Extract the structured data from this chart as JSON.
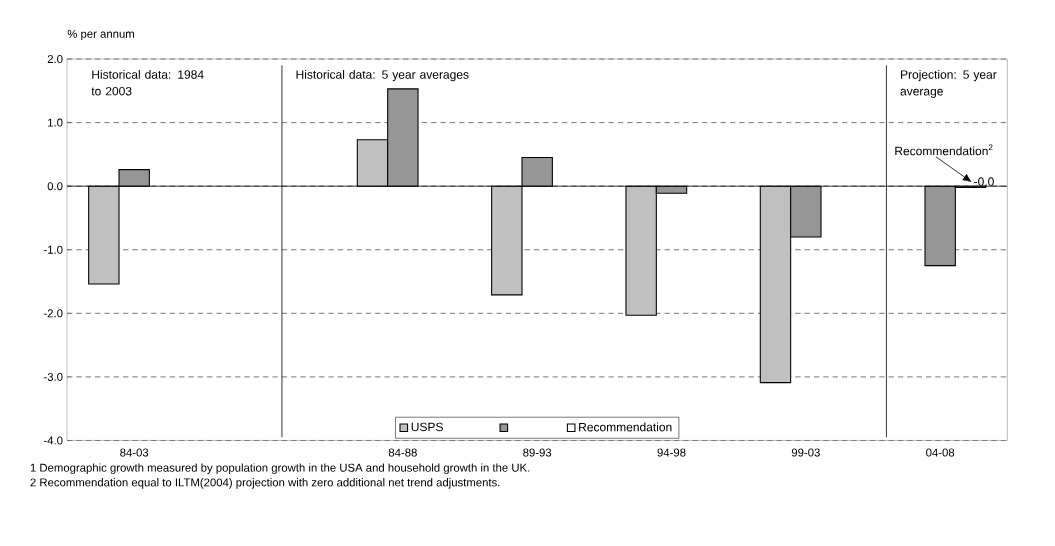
{
  "chart_data": {
    "type": "bar",
    "ylabel": "% per annum",
    "categories": [
      "84-03",
      null,
      "84-88",
      "89-93",
      "94-98",
      "99-03",
      "04-08"
    ],
    "series": [
      {
        "name": "USPS",
        "color": "#c0c0c0",
        "values": [
          -1.54,
          null,
          0.73,
          -1.71,
          -2.03,
          -3.09,
          null
        ]
      },
      {
        "color": "#969696",
        "values": [
          0.26,
          null,
          1.53,
          0.45,
          -0.11,
          -0.8,
          -1.25
        ]
      },
      {
        "name": "Recommendation",
        "color": "#ffffff",
        "values": [
          null,
          null,
          null,
          null,
          null,
          null,
          -0.02
        ],
        "value_labels": [
          null,
          null,
          null,
          null,
          null,
          null,
          "-0.0"
        ]
      }
    ],
    "ylim": [
      -4,
      2
    ],
    "yticks": [
      {
        "value": -4,
        "label": "-4.0"
      },
      {
        "value": -3,
        "label": "-3.0"
      },
      {
        "value": -2,
        "label": "-2.0"
      },
      {
        "value": -1,
        "label": "-1.0"
      },
      {
        "value": 0,
        "label": "0.0"
      },
      {
        "value": 1,
        "label": "1.0"
      },
      {
        "value": 2,
        "label": "2.0"
      }
    ],
    "grid": "y",
    "legend": "bottom",
    "annotations": [
      "Historical data: 1984 to 2003",
      "Historical data: 5 year averages",
      "Projection: 5 year average",
      {
        "text": "Recommendation$^{2}$",
        "x": "04-08",
        "y": 0
      },
      "1  Demographic growth measured by population growth in the USA and household growth in the UK.",
      "2 Recommendation equal to ILTM(2004) projection with zero additional net trend adjustments."
    ]
  }
}
